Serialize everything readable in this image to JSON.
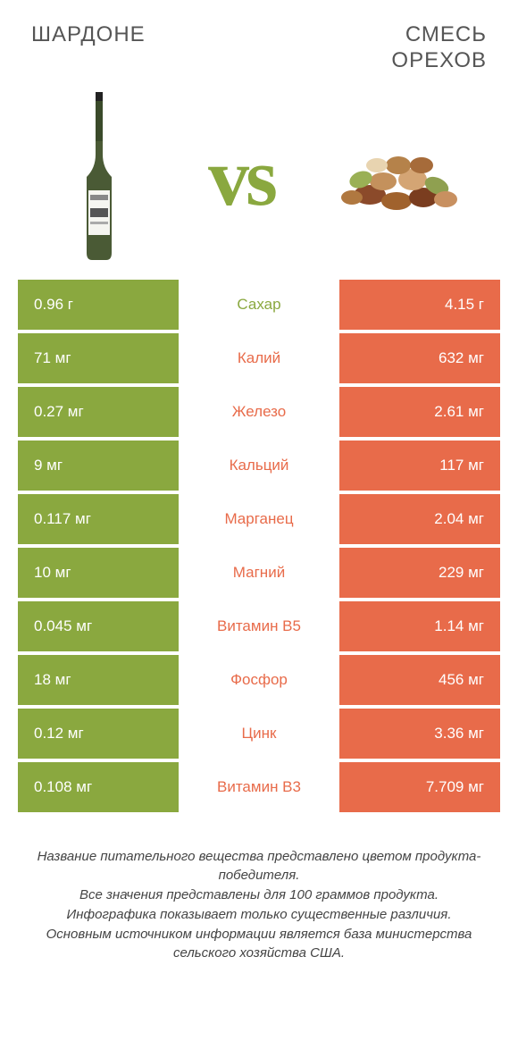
{
  "colors": {
    "green": "#8aa83f",
    "orange": "#e86b4a",
    "green_text": "#8aa83f",
    "orange_text": "#e86b4a"
  },
  "header": {
    "left": "Шардоне",
    "right_line1": "Смесь",
    "right_line2": "Орехов"
  },
  "vs_label": "vs",
  "rows": [
    {
      "left": "0.96 г",
      "label": "Сахар",
      "right": "4.15 г",
      "label_color": "green"
    },
    {
      "left": "71 мг",
      "label": "Калий",
      "right": "632 мг",
      "label_color": "orange"
    },
    {
      "left": "0.27 мг",
      "label": "Железо",
      "right": "2.61 мг",
      "label_color": "orange"
    },
    {
      "left": "9 мг",
      "label": "Кальций",
      "right": "117 мг",
      "label_color": "orange"
    },
    {
      "left": "0.117 мг",
      "label": "Марганец",
      "right": "2.04 мг",
      "label_color": "orange"
    },
    {
      "left": "10 мг",
      "label": "Магний",
      "right": "229 мг",
      "label_color": "orange"
    },
    {
      "left": "0.045 мг",
      "label": "Витамин B5",
      "right": "1.14 мг",
      "label_color": "orange"
    },
    {
      "left": "18 мг",
      "label": "Фосфор",
      "right": "456 мг",
      "label_color": "orange"
    },
    {
      "left": "0.12 мг",
      "label": "Цинк",
      "right": "3.36 мг",
      "label_color": "orange"
    },
    {
      "left": "0.108 мг",
      "label": "Витамин B3",
      "right": "7.709 мг",
      "label_color": "orange"
    }
  ],
  "footnote": "Название питательного вещества представлено цветом продукта-победителя.\nВсе значения представлены для 100 граммов продукта.\nИнфографика показывает только существенные различия.\nОсновным источником информации является база министерства сельского хозяйства США."
}
